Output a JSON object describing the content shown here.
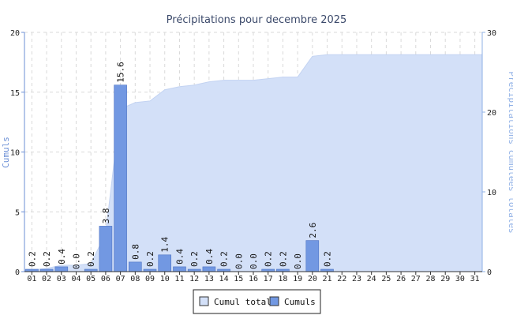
{
  "chart_data": {
    "type": "bar",
    "title": "Précipitations pour decembre 2025",
    "ylabel": "Cumuls",
    "y2label": "Précipitations cumulées totales",
    "categories": [
      "01",
      "02",
      "03",
      "04",
      "05",
      "06",
      "07",
      "08",
      "09",
      "10",
      "11",
      "12",
      "13",
      "14",
      "15",
      "16",
      "17",
      "18",
      "19",
      "20",
      "21",
      "22",
      "23",
      "24",
      "25",
      "26",
      "27",
      "28",
      "29",
      "30",
      "31"
    ],
    "ylim": [
      0,
      20
    ],
    "y2lim": [
      0,
      30
    ],
    "yticks": [
      0,
      5,
      10,
      15,
      20
    ],
    "y2ticks": [
      0,
      10,
      20,
      30
    ],
    "grid": true,
    "legend_position": "bottom-center",
    "series": [
      {
        "name": "Cumuls",
        "type": "bar",
        "axis": "left",
        "color": "#7298e2",
        "values": [
          0.2,
          0.2,
          0.4,
          0.0,
          0.2,
          3.8,
          15.6,
          0.8,
          0.2,
          1.4,
          0.4,
          0.2,
          0.4,
          0.2,
          0.0,
          0.0,
          0.2,
          0.2,
          0.0,
          2.6,
          0.2,
          null,
          null,
          null,
          null,
          null,
          null,
          null,
          null,
          null,
          null
        ],
        "labels": [
          "0.2",
          "0.2",
          "0.4",
          "0.0",
          "0.2",
          "3.8",
          "15.6",
          "0.8",
          "0.2",
          "1.4",
          "0.4",
          "0.2",
          "0.4",
          "0.2",
          "0.0",
          "0.0",
          "0.2",
          "0.2",
          "0.0",
          "2.6",
          "0.2",
          "",
          "",
          "",
          "",
          "",
          "",
          "",
          "",
          "",
          ""
        ]
      },
      {
        "name": "Cumul total",
        "type": "area",
        "axis": "right",
        "color": "#d3e0f8",
        "values": [
          0.2,
          0.4,
          0.8,
          0.8,
          1.0,
          4.8,
          20.4,
          21.2,
          21.4,
          22.8,
          23.2,
          23.4,
          23.8,
          24.0,
          24.0,
          24.0,
          24.2,
          24.4,
          24.4,
          27.0,
          27.2,
          27.2,
          27.2,
          27.2,
          27.2,
          27.2,
          27.2,
          27.2,
          27.2,
          27.2,
          27.2
        ]
      }
    ]
  },
  "legend": {
    "items": [
      {
        "label": "Cumul total",
        "color": "#d3e0f8"
      },
      {
        "label": "Cumuls",
        "color": "#7298e2"
      }
    ]
  }
}
